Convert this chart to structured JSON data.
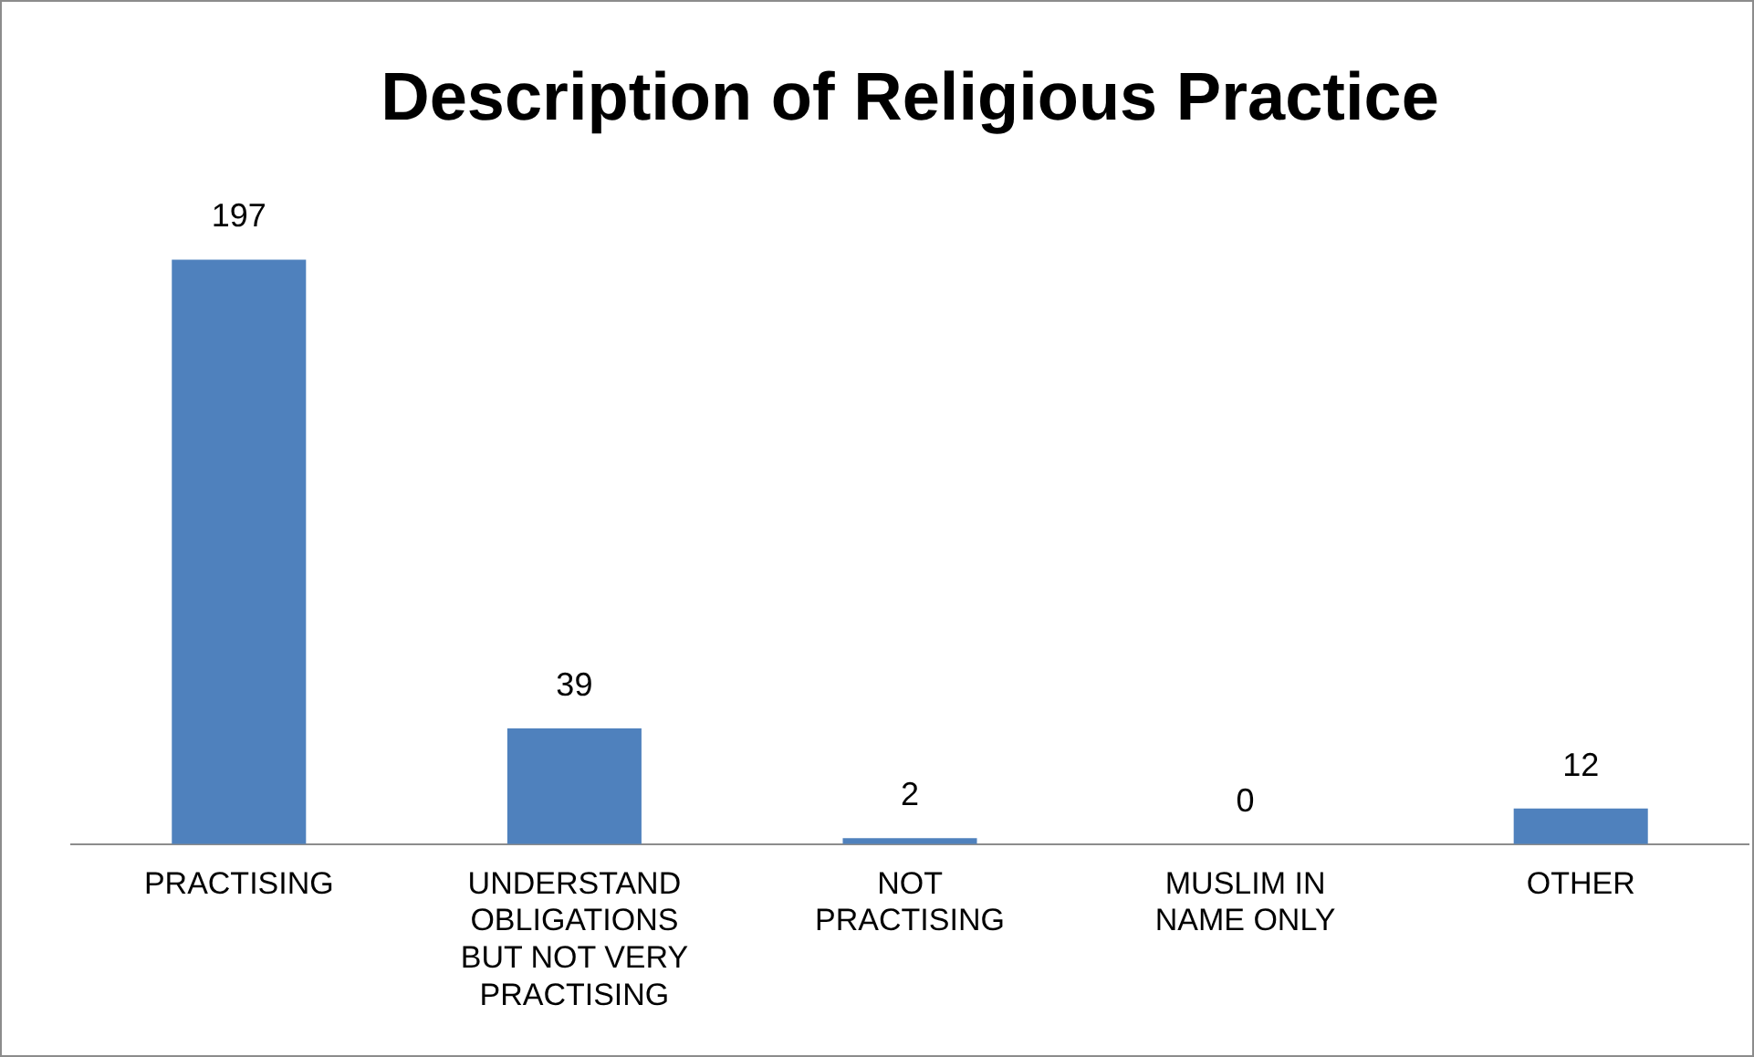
{
  "chart_data": {
    "type": "bar",
    "title": "Description of Religious Practice",
    "categories": [
      "PRACTISING",
      "UNDERSTAND OBLIGATIONS BUT NOT VERY PRACTISING",
      "NOT PRACTISING",
      "MUSLIM IN NAME ONLY",
      "OTHER"
    ],
    "values": [
      197,
      39,
      2,
      0,
      12
    ],
    "color": "#4f81bd",
    "data_labels": true,
    "grid": false,
    "legend": false
  }
}
